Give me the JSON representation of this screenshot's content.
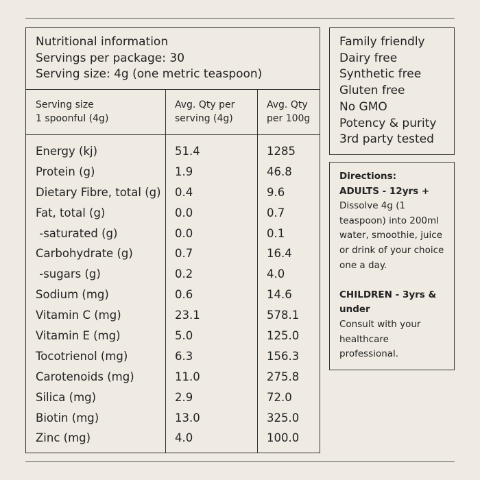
{
  "nutrition": {
    "title": "Nutritional information",
    "servings_per_package": "Servings per package: 30",
    "serving_size": "Serving size: 4g (one metric teaspoon)",
    "columns": [
      "Serving size\n1 spoonful (4g)",
      "Avg. Qty per\nserving (4g)",
      "Avg. Qty\nper 100g"
    ],
    "rows": [
      {
        "name": "Energy (kj)",
        "per_serving": "51.4",
        "per_100g": "1285"
      },
      {
        "name": "Protein (g)",
        "per_serving": "1.9",
        "per_100g": "46.8"
      },
      {
        "name": "Dietary Fibre, total (g)",
        "per_serving": "0.4",
        "per_100g": "9.6"
      },
      {
        "name": "Fat, total (g)",
        "per_serving": "0.0",
        "per_100g": "0.7"
      },
      {
        "name": " -saturated (g)",
        "per_serving": "0.0",
        "per_100g": "0.1"
      },
      {
        "name": "Carbohydrate (g)",
        "per_serving": "0.7",
        "per_100g": "16.4"
      },
      {
        "name": " -sugars (g)",
        "per_serving": "0.2",
        "per_100g": "4.0"
      },
      {
        "name": "Sodium (mg)",
        "per_serving": "0.6",
        "per_100g": "14.6"
      },
      {
        "name": "Vitamin C (mg)",
        "per_serving": "23.1",
        "per_100g": "578.1"
      },
      {
        "name": "Vitamin E (mg)",
        "per_serving": "5.0",
        "per_100g": "125.0"
      },
      {
        "name": "Tocotrienol (mg)",
        "per_serving": "6.3",
        "per_100g": "156.3"
      },
      {
        "name": "Carotenoids (mg)",
        "per_serving": "11.0",
        "per_100g": "275.8"
      },
      {
        "name": "Silica (mg)",
        "per_serving": "2.9",
        "per_100g": "72.0"
      },
      {
        "name": "Biotin (mg)",
        "per_serving": "13.0",
        "per_100g": "325.0"
      },
      {
        "name": "Zinc (mg)",
        "per_serving": "4.0",
        "per_100g": "100.0"
      }
    ]
  },
  "claims": [
    "Family friendly",
    "Dairy free",
    "Synthetic free",
    "Gluten free",
    "No GMO",
    "Potency & purity",
    "3rd party tested"
  ],
  "directions": {
    "heading": "Directions:",
    "adults_label": "ADULTS - 12yrs +",
    "adults_text": "Dissolve 4g (1 teaspoon) into 200ml water, smoothie, juice or drink of your choice one a day.",
    "children_label": "CHILDREN - 3yrs & under",
    "children_text": "Consult with your healthcare professional."
  },
  "colors": {
    "background": "#efebe3",
    "text": "#222222",
    "border": "#333333"
  }
}
